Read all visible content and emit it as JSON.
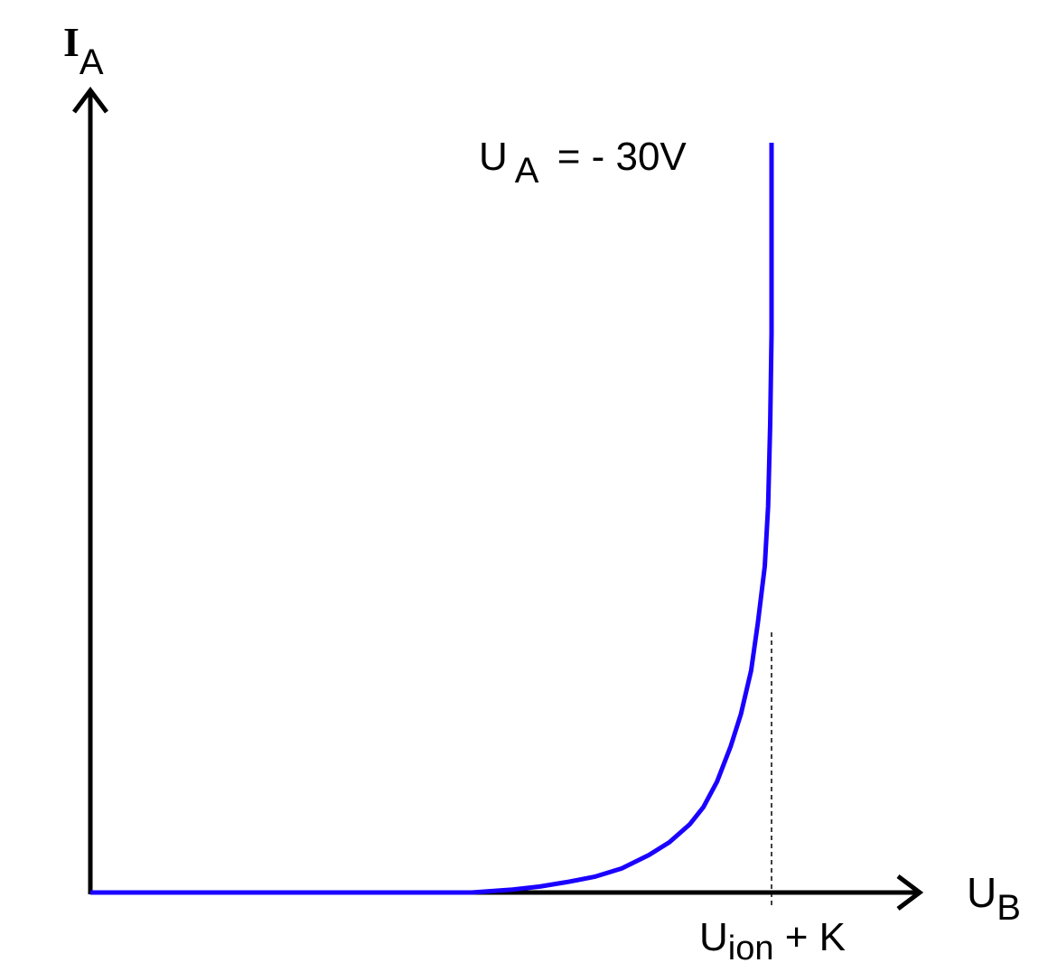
{
  "chart_data": {
    "type": "line",
    "title": "",
    "ylabel": {
      "main": "I",
      "sub": "A"
    },
    "xlabel": {
      "main": "U",
      "sub": "B"
    },
    "series": [
      {
        "label": {
          "main": "U",
          "sub": "A",
          "rest": " = - 30V"
        },
        "color": "#1a00ff",
        "x": [
          0.0,
          0.3,
          0.56,
          0.62,
          0.66,
          0.7,
          0.74,
          0.78,
          0.82,
          0.85,
          0.88,
          0.9,
          0.92,
          0.94,
          0.955,
          0.97,
          0.98,
          0.99,
          0.995,
          0.998,
          1.0,
          1.0,
          1.0
        ],
        "y": [
          0.0,
          0.0,
          0.0,
          0.004,
          0.008,
          0.014,
          0.021,
          0.032,
          0.05,
          0.067,
          0.091,
          0.114,
          0.148,
          0.195,
          0.238,
          0.296,
          0.36,
          0.435,
          0.515,
          0.625,
          0.745,
          0.9,
          1.0
        ]
      }
    ],
    "annotations": [
      {
        "text": {
          "main": "U",
          "sub": "ion",
          "rest": " + K"
        },
        "x": 1.0,
        "style": "dashed-vertical"
      }
    ],
    "xlim": [
      0,
      1
    ],
    "ylim": [
      0,
      1
    ],
    "grid": false,
    "ticks": false
  }
}
